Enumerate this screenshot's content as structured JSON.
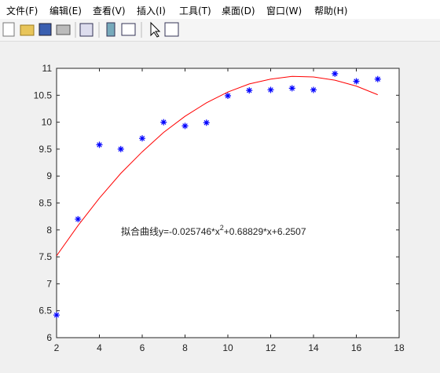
{
  "menu": [
    "文件(F)",
    "编辑(E)",
    "查看(V)",
    "插入(I)",
    "工具(T)",
    "桌面(D)",
    "窗口(W)",
    "帮助(H)"
  ],
  "chart_data": {
    "type": "scatter",
    "x": [
      2,
      3,
      4,
      5,
      6,
      7,
      8,
      9,
      10,
      11,
      12,
      13,
      14,
      15,
      16,
      17
    ],
    "series": [
      {
        "type": "scatter",
        "color": "#0000ff",
        "values": [
          6.42,
          8.2,
          9.58,
          9.5,
          9.7,
          10.0,
          9.93,
          9.99,
          10.49,
          10.59,
          10.6,
          10.63,
          10.6,
          10.9,
          10.76,
          10.8
        ]
      },
      {
        "type": "line",
        "color": "#ff0000",
        "values": [
          7.52,
          8.08,
          8.59,
          9.05,
          9.45,
          9.81,
          10.11,
          10.36,
          10.56,
          10.71,
          10.8,
          10.85,
          10.84,
          10.78,
          10.67,
          10.51
        ]
      }
    ],
    "annotation": [
      "拟合曲线y=-0.025746*x",
      "2",
      "+0.68829*x+6.2507"
    ],
    "xlim": [
      2,
      18
    ],
    "xticks": [
      2,
      4,
      6,
      8,
      10,
      12,
      14,
      16,
      18
    ],
    "ylim": [
      6,
      11
    ],
    "yticks": [
      6,
      6.5,
      7,
      7.5,
      8,
      8.5,
      9,
      9.5,
      10,
      10.5,
      11
    ]
  }
}
